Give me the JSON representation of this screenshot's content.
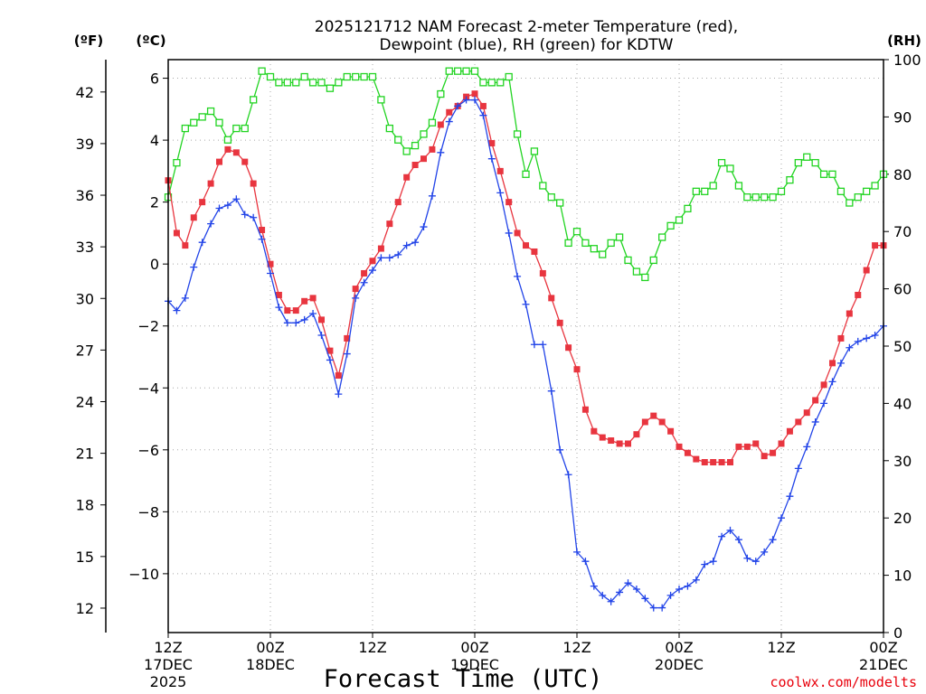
{
  "chart_data": {
    "type": "line",
    "title_line1": "2025121712 NAM Forecast 2-meter Temperature (red),",
    "title_line2": "Dewpoint (blue), RH (green) for KDTW",
    "xlabel": "Forecast Time (UTC)",
    "credit": "coolwx.com/modelts",
    "unit_labels": {
      "fahrenheit": "(ºF)",
      "celsius": "(ºC)",
      "rh": "(RH)"
    },
    "x_range_hours": [
      0,
      84
    ],
    "x_ticks": [
      {
        "hour": 0,
        "lines": [
          "12Z",
          "17DEC",
          "2025"
        ]
      },
      {
        "hour": 12,
        "lines": [
          "00Z",
          "18DEC"
        ]
      },
      {
        "hour": 24,
        "lines": [
          "12Z"
        ]
      },
      {
        "hour": 36,
        "lines": [
          "00Z",
          "19DEC"
        ]
      },
      {
        "hour": 48,
        "lines": [
          "12Z"
        ]
      },
      {
        "hour": 60,
        "lines": [
          "00Z",
          "20DEC"
        ]
      },
      {
        "hour": 72,
        "lines": [
          "12Z"
        ]
      },
      {
        "hour": 84,
        "lines": [
          "00Z",
          "21DEC"
        ]
      }
    ],
    "celsius_axis": {
      "range": [
        -11.9,
        6.6
      ],
      "ticks": [
        6,
        4,
        2,
        0,
        -2,
        -4,
        -6,
        -8,
        -10
      ]
    },
    "fahrenheit_ticks": [
      42,
      39,
      36,
      33,
      30,
      27,
      24,
      21,
      18,
      15,
      12
    ],
    "rh_axis": {
      "range": [
        0,
        100
      ],
      "ticks": [
        100,
        90,
        80,
        70,
        60,
        50,
        40,
        30,
        20,
        10,
        0
      ]
    },
    "series": [
      {
        "name": "2-meter Temperature",
        "unit": "°C",
        "color": "#e8353f",
        "marker": "filled-square",
        "x": [
          0,
          1,
          2,
          3,
          4,
          5,
          6,
          7,
          8,
          9,
          10,
          11,
          12,
          13,
          14,
          15,
          16,
          17,
          18,
          19,
          20,
          21,
          22,
          23,
          24,
          25,
          26,
          27,
          28,
          29,
          30,
          31,
          32,
          33,
          34,
          35,
          36,
          37,
          38,
          39,
          40,
          41,
          42,
          43,
          44,
          45,
          46,
          47,
          48,
          49,
          50,
          51,
          52,
          53,
          54,
          55,
          56,
          57,
          58,
          59,
          60,
          61,
          62,
          63,
          64,
          65,
          66,
          67,
          68,
          69,
          70,
          71,
          72,
          73,
          74,
          75,
          76,
          77,
          78,
          79,
          80,
          81,
          82,
          83,
          84
        ],
        "values": [
          2.7,
          1.0,
          0.6,
          1.5,
          2.0,
          2.6,
          3.3,
          3.7,
          3.6,
          3.3,
          2.6,
          1.1,
          0.0,
          -1.0,
          -1.5,
          -1.5,
          -1.2,
          -1.1,
          -1.8,
          -2.8,
          -3.6,
          -2.4,
          -0.8,
          -0.3,
          0.1,
          0.5,
          1.3,
          2.0,
          2.8,
          3.2,
          3.4,
          3.7,
          4.5,
          4.9,
          5.1,
          5.4,
          5.5,
          5.1,
          3.9,
          3.0,
          2.0,
          1.0,
          0.6,
          0.4,
          -0.3,
          -1.1,
          -1.9,
          -2.7,
          -3.4,
          -4.7,
          -5.4,
          -5.6,
          -5.7,
          -5.8,
          -5.8,
          -5.5,
          -5.1,
          -4.9,
          -5.1,
          -5.4,
          -5.9,
          -6.1,
          -6.3,
          -6.4,
          -6.4,
          -6.4,
          -6.4,
          -5.9,
          -5.9,
          -5.8,
          -6.2,
          -6.1,
          -5.8,
          -5.4,
          -5.1,
          -4.8,
          -4.4,
          -3.9,
          -3.2,
          -2.4,
          -1.6,
          -1.0,
          -0.2,
          0.6,
          0.6
        ]
      },
      {
        "name": "Dewpoint",
        "unit": "°C",
        "color": "#2244e8",
        "marker": "plus",
        "x": [
          0,
          1,
          2,
          3,
          4,
          5,
          6,
          7,
          8,
          9,
          10,
          11,
          12,
          13,
          14,
          15,
          16,
          17,
          18,
          19,
          20,
          21,
          22,
          23,
          24,
          25,
          26,
          27,
          28,
          29,
          30,
          31,
          32,
          33,
          34,
          35,
          36,
          37,
          38,
          39,
          40,
          41,
          42,
          43,
          44,
          45,
          46,
          47,
          48,
          49,
          50,
          51,
          52,
          53,
          54,
          55,
          56,
          57,
          58,
          59,
          60,
          61,
          62,
          63,
          64,
          65,
          66,
          67,
          68,
          69,
          70,
          71,
          72,
          73,
          74,
          75,
          76,
          77,
          78,
          79,
          80,
          81,
          82,
          83,
          84
        ],
        "values": [
          -1.2,
          -1.5,
          -1.1,
          -0.1,
          0.7,
          1.3,
          1.8,
          1.9,
          2.1,
          1.6,
          1.5,
          0.8,
          -0.3,
          -1.4,
          -1.9,
          -1.9,
          -1.8,
          -1.6,
          -2.3,
          -3.1,
          -4.2,
          -2.9,
          -1.1,
          -0.6,
          -0.2,
          0.2,
          0.2,
          0.3,
          0.6,
          0.7,
          1.2,
          2.2,
          3.6,
          4.6,
          5.1,
          5.3,
          5.3,
          4.8,
          3.4,
          2.3,
          1.0,
          -0.4,
          -1.3,
          -2.6,
          -2.6,
          -4.1,
          -6.0,
          -6.8,
          -9.3,
          -9.6,
          -10.4,
          -10.7,
          -10.9,
          -10.6,
          -10.3,
          -10.5,
          -10.8,
          -11.1,
          -11.1,
          -10.7,
          -10.5,
          -10.4,
          -10.2,
          -9.7,
          -9.6,
          -8.8,
          -8.6,
          -8.9,
          -9.5,
          -9.6,
          -9.3,
          -8.9,
          -8.2,
          -7.5,
          -6.6,
          -5.9,
          -5.1,
          -4.5,
          -3.8,
          -3.2,
          -2.7,
          -2.5,
          -2.4,
          -2.3,
          -2.0
        ]
      },
      {
        "name": "RH",
        "unit": "%",
        "color": "#22d422",
        "marker": "open-square",
        "x": [
          0,
          1,
          2,
          3,
          4,
          5,
          6,
          7,
          8,
          9,
          10,
          11,
          12,
          13,
          14,
          15,
          16,
          17,
          18,
          19,
          20,
          21,
          22,
          23,
          24,
          25,
          26,
          27,
          28,
          29,
          30,
          31,
          32,
          33,
          34,
          35,
          36,
          37,
          38,
          39,
          40,
          41,
          42,
          43,
          44,
          45,
          46,
          47,
          48,
          49,
          50,
          51,
          52,
          53,
          54,
          55,
          56,
          57,
          58,
          59,
          60,
          61,
          62,
          63,
          64,
          65,
          66,
          67,
          68,
          69,
          70,
          71,
          72,
          73,
          74,
          75,
          76,
          77,
          78,
          79,
          80,
          81,
          82,
          83,
          84
        ],
        "values": [
          76,
          82,
          88,
          89,
          90,
          91,
          89,
          86,
          88,
          88,
          93,
          98,
          97,
          96,
          96,
          96,
          97,
          96,
          96,
          95,
          96,
          97,
          97,
          97,
          97,
          93,
          88,
          86,
          84,
          85,
          87,
          89,
          94,
          98,
          98,
          98,
          98,
          96,
          96,
          96,
          97,
          87,
          80,
          84,
          78,
          76,
          75,
          68,
          70,
          68,
          67,
          66,
          68,
          69,
          65,
          63,
          62,
          65,
          69,
          71,
          72,
          74,
          77,
          77,
          78,
          82,
          81,
          78,
          76,
          76,
          76,
          76,
          77,
          79,
          82,
          83,
          82,
          80,
          80,
          77,
          75,
          76,
          77,
          78,
          80
        ]
      }
    ]
  }
}
